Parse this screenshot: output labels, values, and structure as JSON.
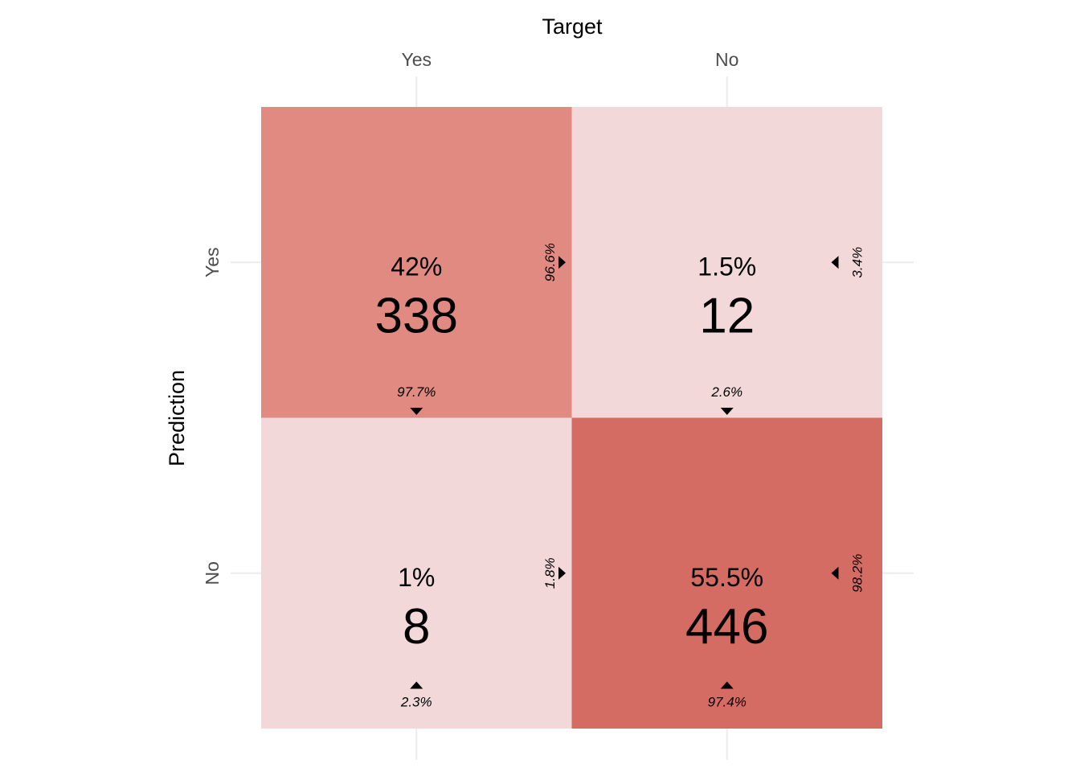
{
  "chart_data": {
    "type": "heatmap",
    "title": "",
    "xlabel": "Target",
    "ylabel": "Prediction",
    "x_categories": [
      "Yes",
      "No"
    ],
    "y_categories": [
      "Yes",
      "No"
    ],
    "x_axis_position": "top",
    "grid": true,
    "legend": "none",
    "colors": {
      "high": "#d56c64",
      "low": "#f2d8d9"
    },
    "cells": [
      {
        "target": "Yes",
        "prediction": "Yes",
        "count": 338,
        "total_pct": "42%",
        "row_pct": "96.6%",
        "col_pct": "97.7%",
        "intensity": 0.62,
        "color": "#e08a81"
      },
      {
        "target": "No",
        "prediction": "Yes",
        "count": 12,
        "total_pct": "1.5%",
        "row_pct": "3.4%",
        "col_pct": "2.6%",
        "intensity": 0.0,
        "color": "#f2d8d9"
      },
      {
        "target": "Yes",
        "prediction": "No",
        "count": 8,
        "total_pct": "1%",
        "row_pct": "1.8%",
        "col_pct": "2.3%",
        "intensity": 0.0,
        "color": "#f2d8d9"
      },
      {
        "target": "No",
        "prediction": "No",
        "count": 446,
        "total_pct": "55.5%",
        "row_pct": "98.2%",
        "col_pct": "97.4%",
        "intensity": 1.0,
        "color": "#d56c64"
      }
    ]
  }
}
